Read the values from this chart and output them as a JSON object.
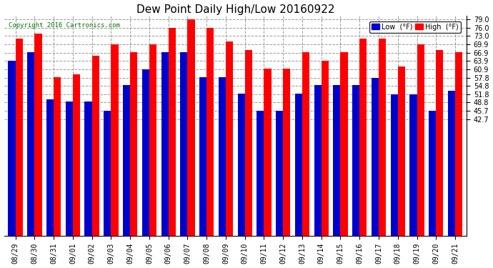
{
  "title": "Dew Point Daily High/Low 20160922",
  "copyright": "Copyright 2016 Cartronics.com",
  "dates": [
    "08/29",
    "08/30",
    "08/31",
    "09/01",
    "09/02",
    "09/03",
    "09/04",
    "09/05",
    "09/06",
    "09/07",
    "09/08",
    "09/09",
    "09/10",
    "09/11",
    "09/12",
    "09/13",
    "09/14",
    "09/15",
    "09/16",
    "09/17",
    "09/18",
    "09/19",
    "09/20",
    "09/21"
  ],
  "low": [
    63.9,
    67.0,
    50.0,
    49.0,
    49.0,
    45.7,
    55.0,
    60.9,
    67.0,
    67.0,
    58.0,
    58.0,
    52.0,
    45.7,
    45.7,
    52.0,
    55.0,
    55.0,
    55.0,
    57.8,
    51.8,
    51.8,
    45.7,
    53.0
  ],
  "high": [
    72.0,
    74.0,
    58.0,
    59.0,
    65.9,
    70.0,
    67.0,
    70.0,
    75.9,
    79.0,
    75.9,
    71.0,
    68.0,
    61.0,
    61.0,
    67.0,
    63.9,
    67.0,
    72.0,
    72.0,
    62.0,
    70.0,
    68.0,
    67.0
  ],
  "bar_width": 0.38,
  "low_color": "#0000cc",
  "high_color": "#ff0000",
  "bg_color": "#ffffff",
  "plot_bg_color": "#ffffff",
  "grid_color": "#999999",
  "ylim_min": 42.7,
  "ylim_max": 80.5,
  "yticks": [
    42.7,
    45.7,
    48.8,
    51.8,
    54.8,
    57.8,
    60.9,
    63.9,
    66.9,
    69.9,
    73.0,
    76.0,
    79.0
  ],
  "legend_low_label": "Low  (°F)",
  "legend_high_label": "High  (°F)",
  "copyright_color": "#007700",
  "title_fontsize": 11,
  "tick_fontsize": 7,
  "figwidth": 6.9,
  "figheight": 3.75,
  "dpi": 100
}
